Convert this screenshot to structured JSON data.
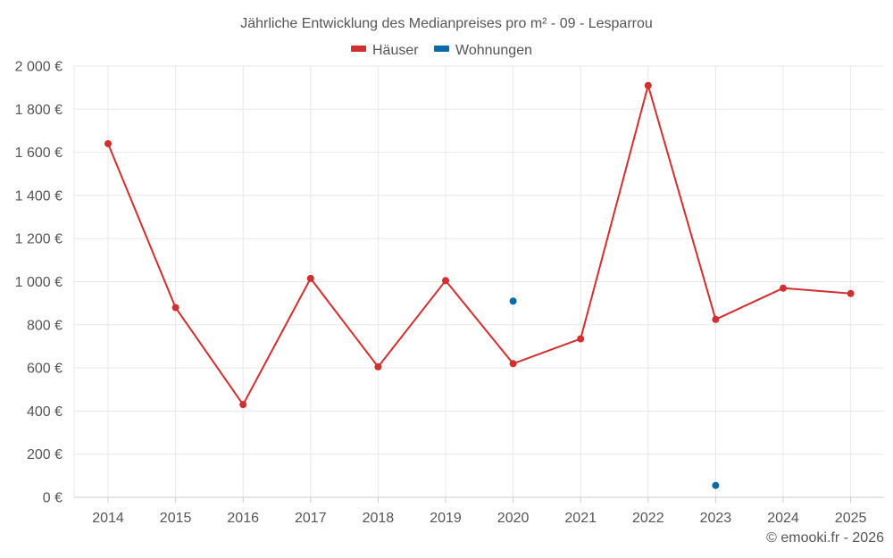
{
  "chart_data": {
    "type": "line",
    "title": "Jährliche Entwicklung des Medianpreises pro m² - 09 - Lesparrou",
    "categories": [
      "2014",
      "2015",
      "2016",
      "2017",
      "2018",
      "2019",
      "2020",
      "2021",
      "2022",
      "2023",
      "2024",
      "2025"
    ],
    "series": [
      {
        "name": "Häuser",
        "color": "#d32f2f",
        "values": [
          1640,
          880,
          430,
          1015,
          605,
          1005,
          620,
          735,
          1910,
          825,
          970,
          945
        ]
      },
      {
        "name": "Wohnungen",
        "color": "#0d6aa8",
        "values": [
          null,
          null,
          null,
          null,
          null,
          null,
          910,
          null,
          null,
          55,
          null,
          null
        ]
      }
    ],
    "ylim": [
      0,
      2000
    ],
    "yticks": [
      0,
      200,
      400,
      600,
      800,
      1000,
      1200,
      1400,
      1600,
      1800,
      2000
    ],
    "ytick_labels": [
      "0 €",
      "200 €",
      "400 €",
      "600 €",
      "800 €",
      "1 000 €",
      "1 200 €",
      "1 400 €",
      "1 600 €",
      "1 800 €",
      "2 000 €"
    ],
    "grid": true,
    "legend_position": "top-center"
  },
  "footer": "© emooki.fr - 2026"
}
